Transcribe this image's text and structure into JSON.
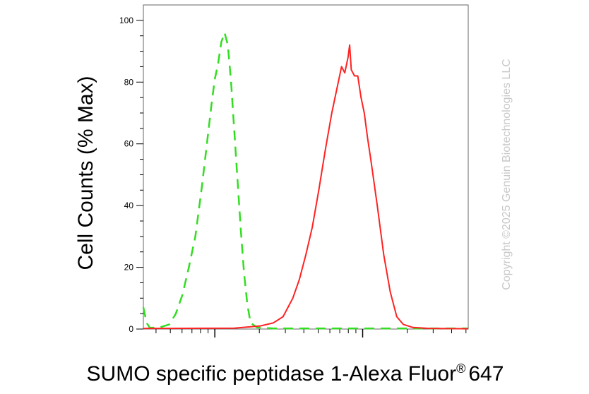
{
  "chart_data": {
    "type": "line",
    "xlabel_main": "SUMO specific peptidase 1-Alexa Fluor",
    "xlabel_sup": "®",
    "xlabel_tail": "647",
    "ylabel": "Cell Counts (% Max)",
    "y_ticks": [
      "0",
      "20",
      "40",
      "60",
      "80",
      "100"
    ],
    "ylim": [
      0,
      105
    ],
    "x_scale": "log",
    "x_tick_labels_shown": false,
    "watermark": "Copyright ©2025 Genuin Biotechnologies LLC",
    "series": [
      {
        "color": "#33dd22",
        "style": "dashed",
        "points": [
          [
            0.0,
            7
          ],
          [
            0.01,
            2
          ],
          [
            0.02,
            0.4
          ],
          [
            0.05,
            0.5
          ],
          [
            0.08,
            1.5
          ],
          [
            0.1,
            5
          ],
          [
            0.12,
            11
          ],
          [
            0.14,
            20
          ],
          [
            0.16,
            30
          ],
          [
            0.17,
            38
          ],
          [
            0.18,
            46
          ],
          [
            0.19,
            55
          ],
          [
            0.2,
            64
          ],
          [
            0.21,
            73
          ],
          [
            0.22,
            81
          ],
          [
            0.23,
            86
          ],
          [
            0.24,
            93
          ],
          [
            0.25,
            96
          ],
          [
            0.26,
            92
          ],
          [
            0.27,
            80
          ],
          [
            0.28,
            64
          ],
          [
            0.29,
            48
          ],
          [
            0.3,
            32
          ],
          [
            0.31,
            18
          ],
          [
            0.32,
            8
          ],
          [
            0.33,
            2
          ],
          [
            0.35,
            0.5
          ],
          [
            0.4,
            0.2
          ],
          [
            0.5,
            0.2
          ],
          [
            1.0,
            0.2
          ]
        ]
      },
      {
        "color": "#ff2222",
        "style": "solid",
        "points": [
          [
            0.0,
            0.2
          ],
          [
            0.28,
            0.3
          ],
          [
            0.36,
            1
          ],
          [
            0.4,
            2
          ],
          [
            0.43,
            4
          ],
          [
            0.46,
            10
          ],
          [
            0.48,
            16
          ],
          [
            0.5,
            24
          ],
          [
            0.52,
            33
          ],
          [
            0.54,
            45
          ],
          [
            0.56,
            58
          ],
          [
            0.58,
            70
          ],
          [
            0.6,
            80
          ],
          [
            0.61,
            85
          ],
          [
            0.62,
            83
          ],
          [
            0.63,
            88
          ],
          [
            0.635,
            92
          ],
          [
            0.64,
            84
          ],
          [
            0.65,
            82
          ],
          [
            0.66,
            82
          ],
          [
            0.67,
            75
          ],
          [
            0.68,
            70
          ],
          [
            0.69,
            62
          ],
          [
            0.7,
            55
          ],
          [
            0.72,
            40
          ],
          [
            0.74,
            24
          ],
          [
            0.76,
            12
          ],
          [
            0.78,
            4
          ],
          [
            0.8,
            1.5
          ],
          [
            0.83,
            0.5
          ],
          [
            0.88,
            0.2
          ],
          [
            1.0,
            0.1
          ]
        ]
      }
    ]
  }
}
